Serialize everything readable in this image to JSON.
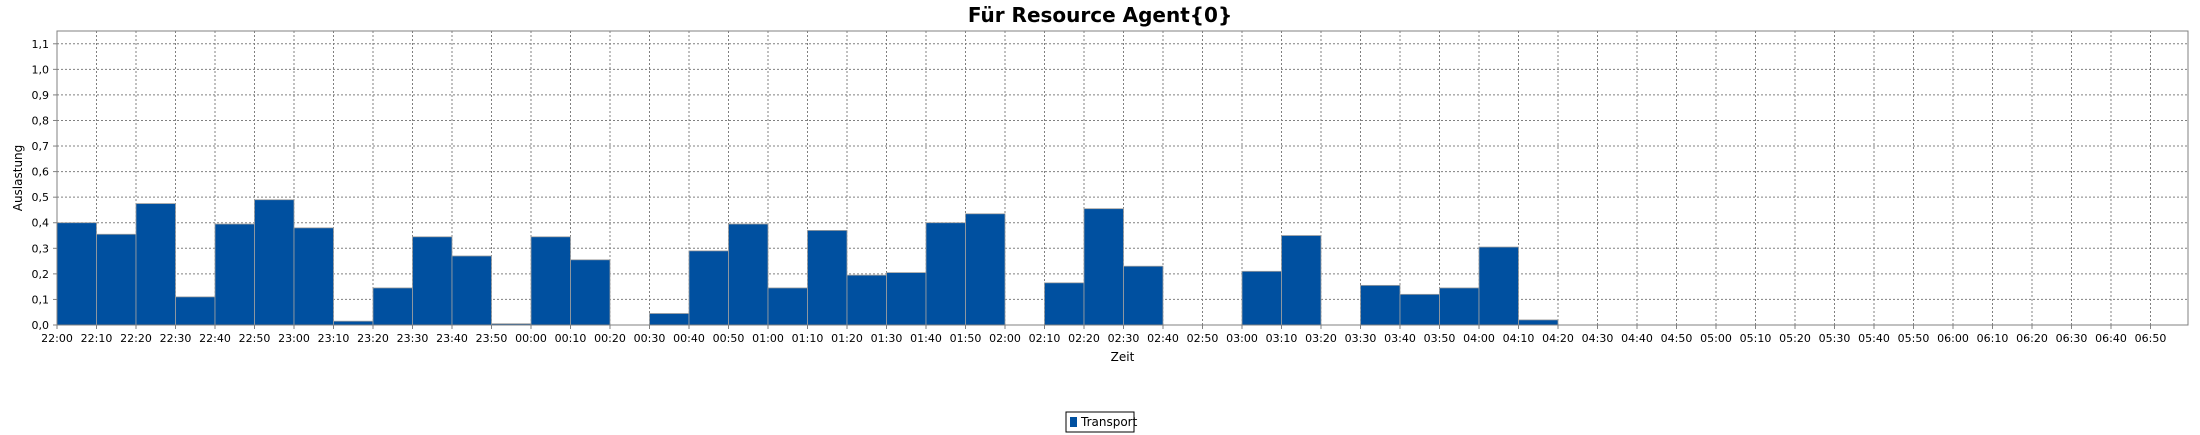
{
  "chart_data": {
    "type": "bar",
    "title": "Für Resource Agent{0}",
    "xlabel": "Zeit",
    "ylabel": "Auslastung",
    "ylim": [
      0,
      1.15
    ],
    "yticks": [
      "0,0",
      "0,1",
      "0,2",
      "0,3",
      "0,4",
      "0,5",
      "0,6",
      "0,7",
      "0,8",
      "0,9",
      "1,0",
      "1,1"
    ],
    "grid": true,
    "legend_position": "bottom-center",
    "bar_color": "#0050A0",
    "categories": [
      "22:00",
      "22:10",
      "22:20",
      "22:30",
      "22:40",
      "22:50",
      "23:00",
      "23:10",
      "23:20",
      "23:30",
      "23:40",
      "23:50",
      "00:00",
      "00:10",
      "00:20",
      "00:30",
      "00:40",
      "00:50",
      "01:00",
      "01:10",
      "01:20",
      "01:30",
      "01:40",
      "01:50",
      "02:00",
      "02:10",
      "02:20",
      "02:30",
      "02:40",
      "02:50",
      "03:00",
      "03:10",
      "03:20",
      "03:30",
      "03:40",
      "03:50",
      "04:00",
      "04:10",
      "04:20",
      "04:30",
      "04:40",
      "04:50",
      "05:00",
      "05:10",
      "05:20",
      "05:30",
      "05:40",
      "05:50",
      "06:00",
      "06:10",
      "06:20",
      "06:30",
      "06:40",
      "06:50"
    ],
    "series": [
      {
        "name": "Transport",
        "values": [
          0.4,
          0.355,
          0.475,
          0.11,
          0.395,
          0.49,
          0.38,
          0.015,
          0.145,
          0.345,
          0.27,
          0.005,
          0.345,
          0.255,
          0,
          0.045,
          0.29,
          0.395,
          0.145,
          0.37,
          0.195,
          0.205,
          0.4,
          0.435,
          0,
          0.165,
          0.455,
          0.23,
          0,
          0,
          0.21,
          0.35,
          0,
          0.155,
          0.12,
          0.145,
          0.305,
          0.02,
          0,
          0,
          0,
          0,
          0,
          0,
          0,
          0,
          0,
          0,
          0,
          0,
          0,
          0,
          0,
          0
        ]
      }
    ]
  }
}
